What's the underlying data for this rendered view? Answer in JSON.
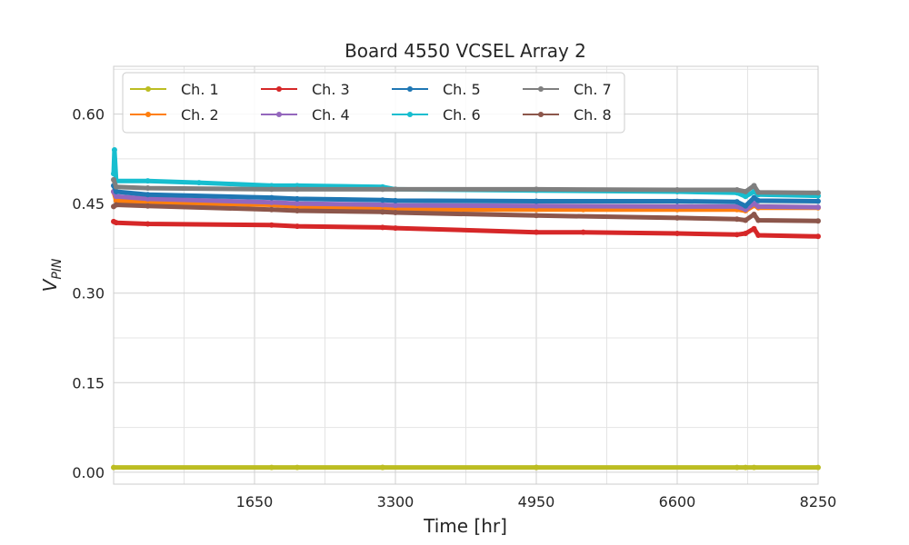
{
  "chart_data": {
    "type": "line",
    "title": "Board 4550 VCSEL Array 2",
    "xlabel": "Time [hr]",
    "ylabel_main": "V",
    "ylabel_sub": "PIN",
    "xlim": [
      0,
      8250
    ],
    "ylim": [
      -0.02,
      0.68
    ],
    "xticks": [
      1650,
      3300,
      4950,
      6600,
      8250
    ],
    "xtick_labels": [
      "1650",
      "3300",
      "4950",
      "6600",
      "8250"
    ],
    "yticks": [
      0.0,
      0.15,
      0.3,
      0.45,
      0.6
    ],
    "ytick_labels": [
      "0.00",
      "0.15",
      "0.30",
      "0.45",
      "0.60"
    ],
    "grid": true,
    "legend_position": "top-left",
    "legend_columns": 4,
    "series": [
      {
        "name": "Ch. 1",
        "color": "#bcbd22",
        "x": [
          0,
          1850,
          2150,
          3150,
          3150,
          4950,
          4950,
          7300,
          7400,
          7500,
          8250
        ],
        "y": [
          0.008,
          0.008,
          0.008,
          0.008,
          0.008,
          0.008,
          0.008,
          0.008,
          0.008,
          0.008,
          0.008
        ]
      },
      {
        "name": "Ch. 2",
        "color": "#ff7f0e",
        "x": [
          0,
          30,
          400,
          1850,
          2150,
          3150,
          3300,
          3700,
          4950,
          5500,
          6600,
          7300,
          7400,
          7500,
          7550,
          8250
        ],
        "y": [
          0.47,
          0.455,
          0.452,
          0.448,
          0.445,
          0.442,
          0.442,
          0.44,
          0.44,
          0.44,
          0.44,
          0.44,
          0.438,
          0.447,
          0.443,
          0.443
        ]
      },
      {
        "name": "Ch. 3",
        "color": "#d62728",
        "x": [
          0,
          30,
          400,
          1850,
          2150,
          3150,
          3300,
          4950,
          5500,
          6600,
          7300,
          7400,
          7500,
          7550,
          8250
        ],
        "y": [
          0.42,
          0.418,
          0.416,
          0.414,
          0.412,
          0.41,
          0.409,
          0.402,
          0.402,
          0.4,
          0.398,
          0.4,
          0.408,
          0.397,
          0.395
        ]
      },
      {
        "name": "Ch. 4",
        "color": "#9467bd",
        "x": [
          0,
          30,
          400,
          1850,
          2150,
          3150,
          3300,
          4950,
          6600,
          7300,
          7400,
          7500,
          7550,
          8250
        ],
        "y": [
          0.47,
          0.462,
          0.458,
          0.452,
          0.45,
          0.448,
          0.447,
          0.446,
          0.445,
          0.445,
          0.44,
          0.45,
          0.445,
          0.444
        ]
      },
      {
        "name": "Ch. 5",
        "color": "#1f77b4",
        "x": [
          0,
          30,
          400,
          1850,
          2150,
          3150,
          3300,
          4950,
          6600,
          7300,
          7400,
          7500,
          7550,
          8250
        ],
        "y": [
          0.48,
          0.47,
          0.465,
          0.46,
          0.458,
          0.456,
          0.455,
          0.454,
          0.454,
          0.453,
          0.446,
          0.46,
          0.455,
          0.454
        ]
      },
      {
        "name": "Ch. 6",
        "color": "#17becf",
        "x": [
          0,
          10,
          30,
          400,
          1000,
          1850,
          2150,
          3150,
          3300,
          4950,
          6600,
          7300,
          7400,
          7500,
          7550,
          8250
        ],
        "y": [
          0.5,
          0.54,
          0.488,
          0.488,
          0.485,
          0.48,
          0.48,
          0.478,
          0.474,
          0.472,
          0.47,
          0.468,
          0.462,
          0.47,
          0.465,
          0.463
        ]
      },
      {
        "name": "Ch. 7",
        "color": "#7f7f7f",
        "x": [
          0,
          30,
          400,
          1850,
          2150,
          3150,
          3300,
          4950,
          6600,
          7300,
          7400,
          7500,
          7550,
          8250
        ],
        "y": [
          0.49,
          0.478,
          0.476,
          0.474,
          0.474,
          0.474,
          0.474,
          0.474,
          0.473,
          0.473,
          0.47,
          0.48,
          0.469,
          0.468
        ]
      },
      {
        "name": "Ch. 8",
        "color": "#8c564b",
        "x": [
          0,
          30,
          400,
          1850,
          2150,
          3150,
          3300,
          4950,
          6600,
          7300,
          7400,
          7500,
          7550,
          8250
        ],
        "y": [
          0.445,
          0.448,
          0.446,
          0.44,
          0.438,
          0.436,
          0.435,
          0.43,
          0.426,
          0.424,
          0.422,
          0.432,
          0.422,
          0.421
        ]
      }
    ]
  }
}
